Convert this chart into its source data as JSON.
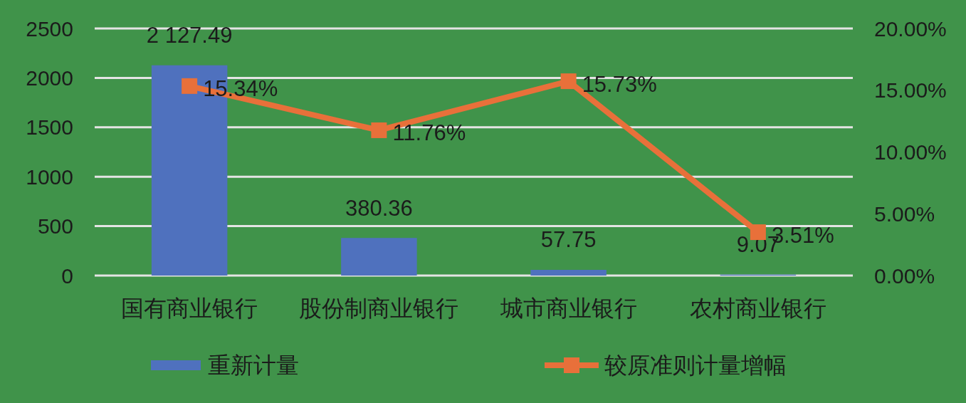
{
  "chart_data": {
    "type": "bar",
    "categories": [
      "国有商业银行",
      "股份制商业银行",
      "城市商业银行",
      "农村商业银行"
    ],
    "series": [
      {
        "name": "重新计量",
        "color": "#4f71be",
        "values": [
          2127.49,
          380.36,
          57.75,
          9.07
        ],
        "value_labels": [
          "2 127.49",
          "380.36",
          "57.75",
          "9.07"
        ]
      },
      {
        "name": "较原准则计量增幅",
        "type": "line",
        "axis": "y2",
        "color": "#e8703a",
        "values": [
          15.34,
          11.76,
          15.73,
          3.51
        ],
        "value_labels": [
          "15.34%",
          "11.76%",
          "15.73%",
          "3.51%"
        ]
      }
    ],
    "ylim": [
      0,
      2500
    ],
    "yticks": [
      0,
      500,
      1000,
      1500,
      2000,
      2500
    ],
    "y2lim": [
      0,
      20
    ],
    "y2ticks": [
      {
        "value": 0,
        "label": "0.00%"
      },
      {
        "value": 5,
        "label": "5.00%"
      },
      {
        "value": 10,
        "label": "10.00%"
      },
      {
        "value": 15,
        "label": "15.00%"
      },
      {
        "value": 20,
        "label": "20.00%"
      }
    ],
    "grid": "y",
    "legend": "bottom",
    "marker": "square"
  }
}
